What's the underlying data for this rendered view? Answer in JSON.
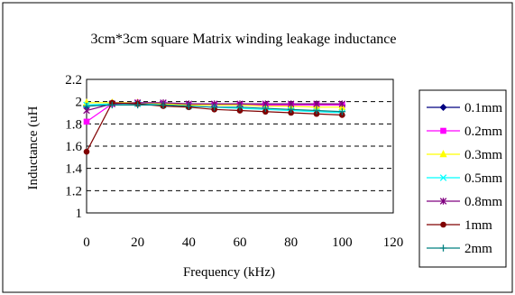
{
  "chart_data": {
    "type": "line",
    "title": "3cm*3cm square Matrix winding leakage inductance",
    "xlabel": "Frequency (kHz)",
    "ylabel": "Inductance (uH",
    "xlim": [
      0,
      120
    ],
    "ylim": [
      1,
      2.2
    ],
    "xticks": [
      0,
      20,
      40,
      60,
      80,
      100,
      120
    ],
    "yticks": [
      1,
      1.2,
      1.4,
      1.6,
      1.8,
      2,
      2.2
    ],
    "x_tick_labels": [
      "0",
      "20",
      "40",
      "60",
      "80",
      "100",
      "120"
    ],
    "y_tick_labels": [
      "1",
      "1.2",
      "1.4",
      "1.6",
      "1.8",
      "2",
      "2.2"
    ],
    "grid": true,
    "legend_position": "right",
    "x": [
      0,
      10,
      20,
      30,
      40,
      50,
      60,
      70,
      80,
      90,
      100
    ],
    "series": [
      {
        "name": "0.1mm",
        "color": "#000080",
        "marker": "diamond",
        "values": [
          1.96,
          1.98,
          1.99,
          1.98,
          1.97,
          1.97,
          1.97,
          1.97,
          1.97,
          1.97,
          1.97
        ]
      },
      {
        "name": "0.2mm",
        "color": "#ff00ff",
        "marker": "square",
        "values": [
          1.82,
          1.98,
          1.99,
          1.98,
          1.97,
          1.97,
          1.97,
          1.97,
          1.97,
          1.97,
          1.97
        ]
      },
      {
        "name": "0.3mm",
        "color": "#ffff00",
        "marker": "triangle",
        "values": [
          1.99,
          1.99,
          1.99,
          1.98,
          1.97,
          1.97,
          1.97,
          1.96,
          1.96,
          1.95,
          1.95
        ]
      },
      {
        "name": "0.5mm",
        "color": "#00ffff",
        "marker": "x",
        "values": [
          1.97,
          1.98,
          1.98,
          1.97,
          1.96,
          1.95,
          1.94,
          1.93,
          1.92,
          1.91,
          1.9
        ]
      },
      {
        "name": "0.8mm",
        "color": "#800080",
        "marker": "star",
        "values": [
          1.92,
          1.98,
          1.99,
          1.99,
          1.98,
          1.98,
          1.98,
          1.98,
          1.98,
          1.98,
          1.98
        ]
      },
      {
        "name": "1mm",
        "color": "#800000",
        "marker": "circle",
        "values": [
          1.55,
          1.99,
          1.98,
          1.96,
          1.95,
          1.93,
          1.92,
          1.91,
          1.9,
          1.89,
          1.88
        ]
      },
      {
        "name": "2mm",
        "color": "#008080",
        "marker": "plus",
        "values": [
          1.96,
          1.97,
          1.97,
          1.97,
          1.96,
          1.95,
          1.95,
          1.94,
          1.93,
          1.92,
          1.91
        ]
      }
    ]
  }
}
